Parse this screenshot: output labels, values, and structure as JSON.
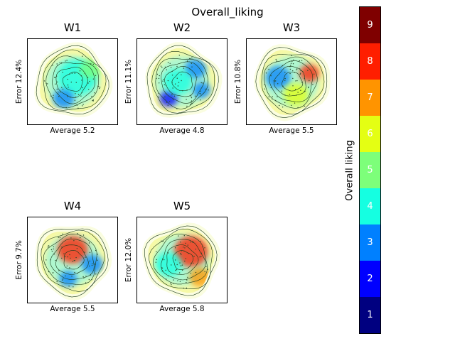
{
  "chart_data": {
    "type": "heatmap",
    "title": "Overall_liking",
    "panels": [
      {
        "title": "W1",
        "xlabel": "Average 5.2",
        "ylabel": "Error 12.4%",
        "blobs": [
          {
            "level": 4,
            "u": 0.55,
            "v": 0.45,
            "s": 0.22
          },
          {
            "level": 3,
            "u": 0.4,
            "v": 0.7,
            "s": 0.12
          },
          {
            "level": 5,
            "u": 0.7,
            "v": 0.35,
            "s": 0.12
          }
        ]
      },
      {
        "title": "W2",
        "xlabel": "Average 4.8",
        "ylabel": "Error 11.1%",
        "blobs": [
          {
            "level": 3,
            "u": 0.65,
            "v": 0.35,
            "s": 0.12
          },
          {
            "level": 3,
            "u": 0.72,
            "v": 0.6,
            "s": 0.1
          },
          {
            "level": 2,
            "u": 0.35,
            "v": 0.7,
            "s": 0.1
          },
          {
            "level": 4,
            "u": 0.45,
            "v": 0.5,
            "s": 0.16
          }
        ]
      },
      {
        "title": "W3",
        "xlabel": "Average 5.5",
        "ylabel": "Error 10.8%",
        "blobs": [
          {
            "level": 8,
            "u": 0.7,
            "v": 0.4,
            "s": 0.11
          },
          {
            "level": 3,
            "u": 0.35,
            "v": 0.45,
            "s": 0.14
          },
          {
            "level": 6,
            "u": 0.55,
            "v": 0.65,
            "s": 0.14
          }
        ]
      },
      {
        "title": "W4",
        "xlabel": "Average 5.5",
        "ylabel": "Error 9.7%",
        "blobs": [
          {
            "level": 8,
            "u": 0.5,
            "v": 0.38,
            "s": 0.17
          },
          {
            "level": 3,
            "u": 0.72,
            "v": 0.55,
            "s": 0.12
          },
          {
            "level": 3,
            "u": 0.45,
            "v": 0.72,
            "s": 0.1
          }
        ]
      },
      {
        "title": "W5",
        "xlabel": "Average 5.8",
        "ylabel": "Error 12.0%",
        "blobs": [
          {
            "level": 8,
            "u": 0.6,
            "v": 0.4,
            "s": 0.19
          },
          {
            "level": 4,
            "u": 0.35,
            "v": 0.55,
            "s": 0.15
          },
          {
            "level": 7,
            "u": 0.7,
            "v": 0.7,
            "s": 0.12
          }
        ]
      }
    ],
    "colorbar": {
      "label": "Overall liking",
      "levels": [
        {
          "value": 1,
          "color": "#000080"
        },
        {
          "value": 2,
          "color": "#0000ff"
        },
        {
          "value": 3,
          "color": "#0080ff"
        },
        {
          "value": 4,
          "color": "#15ffe1"
        },
        {
          "value": 5,
          "color": "#7dff7a"
        },
        {
          "value": 6,
          "color": "#e4ff13"
        },
        {
          "value": 7,
          "color": "#ff9400"
        },
        {
          "value": 8,
          "color": "#ff1e00"
        },
        {
          "value": 9,
          "color": "#7f0000"
        }
      ]
    }
  }
}
